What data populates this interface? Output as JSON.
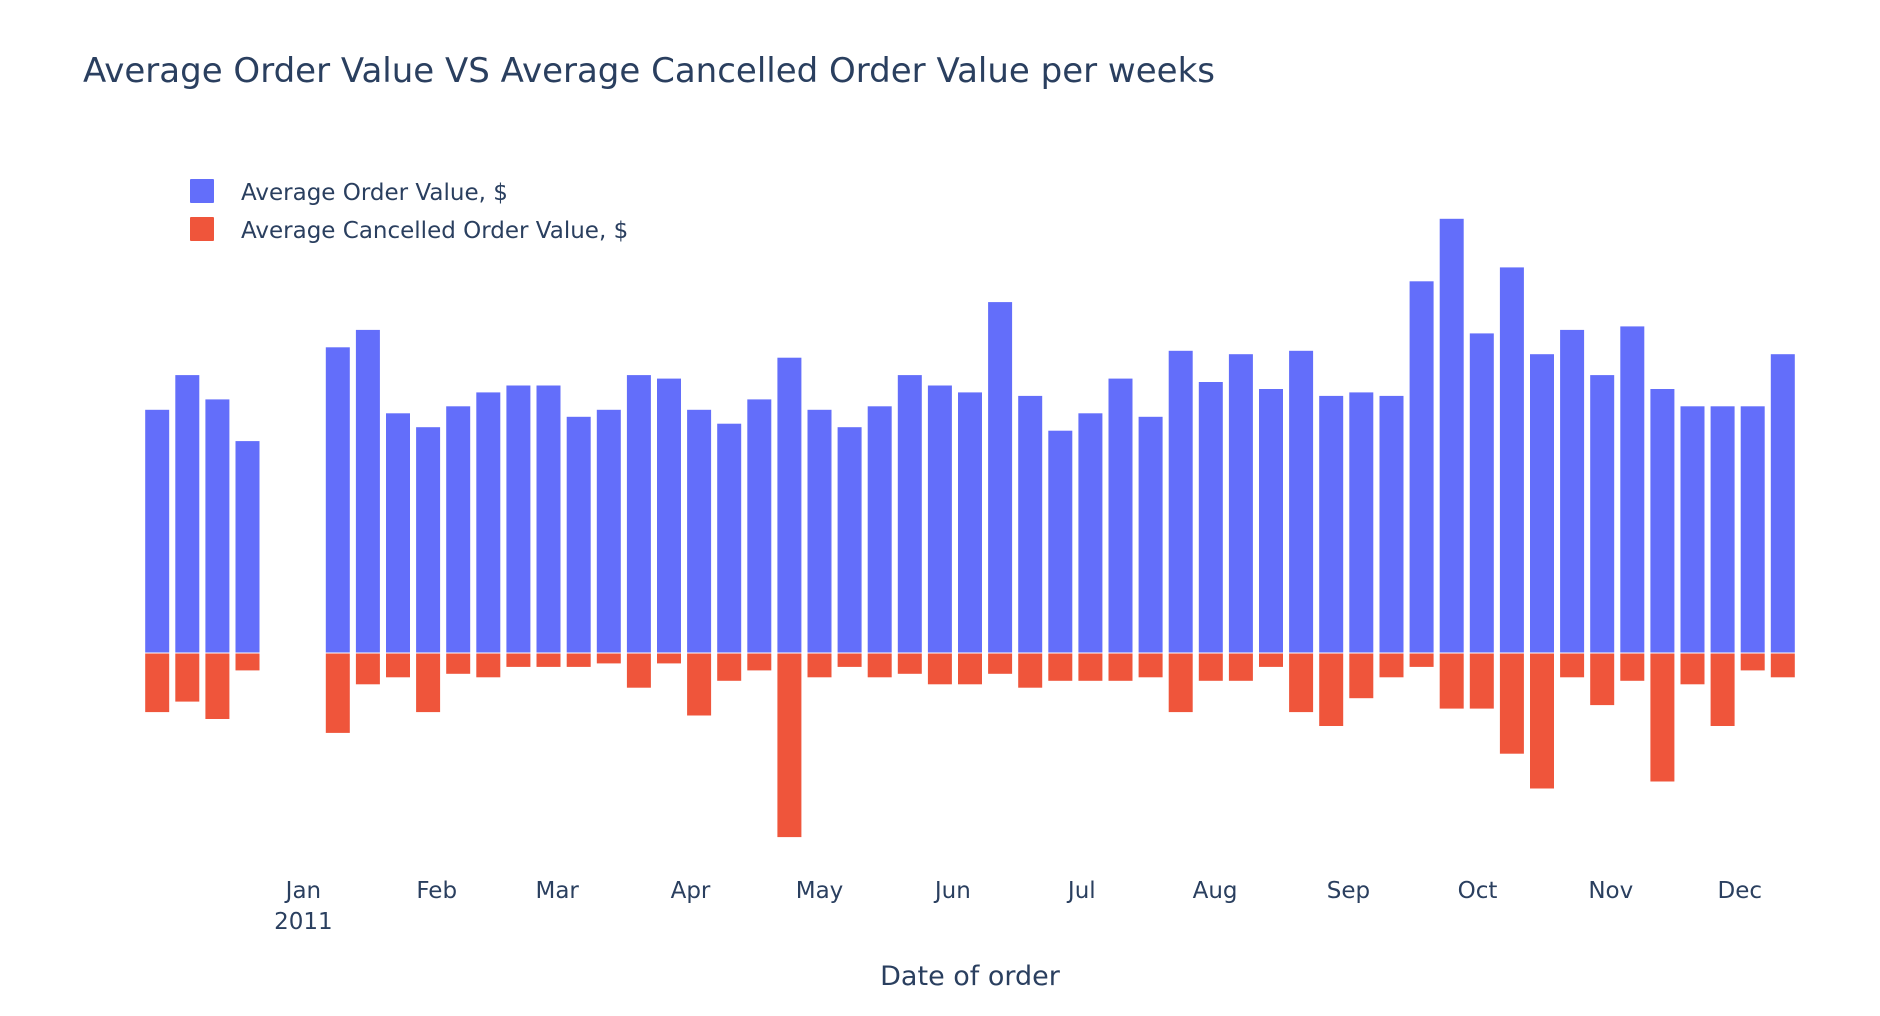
{
  "chart_data": {
    "type": "bar",
    "title": "Average Order Value VS Average Cancelled Order Value per weeks",
    "xlabel": "Date of order",
    "ylabel": "",
    "legend": {
      "placement": "top-left",
      "orientation": "vertical"
    },
    "grid": false,
    "y_tick_labels_shown": false,
    "colors": {
      "order_value": "#636efa",
      "cancelled_value": "#ef553b",
      "text": "#2a3f5f",
      "background": "#ffffff"
    },
    "x_ticks": [
      {
        "label": "Jan",
        "sublabel": "2011",
        "date": "2011-01-01"
      },
      {
        "label": "Feb",
        "sublabel": "",
        "date": "2011-02-01"
      },
      {
        "label": "Mar",
        "sublabel": "",
        "date": "2011-03-01"
      },
      {
        "label": "Apr",
        "sublabel": "",
        "date": "2011-04-01"
      },
      {
        "label": "May",
        "sublabel": "",
        "date": "2011-05-01"
      },
      {
        "label": "Jun",
        "sublabel": "",
        "date": "2011-06-01"
      },
      {
        "label": "Jul",
        "sublabel": "",
        "date": "2011-07-01"
      },
      {
        "label": "Aug",
        "sublabel": "",
        "date": "2011-08-01"
      },
      {
        "label": "Sep",
        "sublabel": "",
        "date": "2011-09-01"
      },
      {
        "label": "Oct",
        "sublabel": "",
        "date": "2011-10-01"
      },
      {
        "label": "Nov",
        "sublabel": "",
        "date": "2011-11-01"
      },
      {
        "label": "Dec",
        "sublabel": "",
        "date": "2011-12-01"
      }
    ],
    "x_range": [
      "2010-11-24",
      "2011-12-15"
    ],
    "ylim": [
      -60,
      124
    ],
    "series": [
      {
        "name": "Average Order Value, $",
        "x": [
          "2010-11-28",
          "2010-12-05",
          "2010-12-12",
          "2010-12-19",
          "2011-01-09",
          "2011-01-16",
          "2011-01-23",
          "2011-01-30",
          "2011-02-06",
          "2011-02-13",
          "2011-02-20",
          "2011-02-27",
          "2011-03-06",
          "2011-03-13",
          "2011-03-20",
          "2011-03-27",
          "2011-04-03",
          "2011-04-10",
          "2011-04-17",
          "2011-04-24",
          "2011-05-01",
          "2011-05-08",
          "2011-05-15",
          "2011-05-22",
          "2011-05-29",
          "2011-06-05",
          "2011-06-12",
          "2011-06-19",
          "2011-06-26",
          "2011-07-03",
          "2011-07-10",
          "2011-07-17",
          "2011-07-24",
          "2011-07-31",
          "2011-08-07",
          "2011-08-14",
          "2011-08-21",
          "2011-08-28",
          "2011-09-04",
          "2011-09-11",
          "2011-09-18",
          "2011-09-25",
          "2011-10-02",
          "2011-10-09",
          "2011-10-16",
          "2011-10-23",
          "2011-10-30",
          "2011-11-06",
          "2011-11-13",
          "2011-11-20",
          "2011-11-27",
          "2011-12-04",
          "2011-12-11"
        ],
        "values": [
          70,
          80,
          73,
          61,
          88,
          93,
          69,
          65,
          71,
          75,
          77,
          77,
          68,
          70,
          80,
          79,
          70,
          66,
          73,
          85,
          70,
          65,
          71,
          80,
          77,
          75,
          101,
          74,
          64,
          69,
          79,
          68,
          87,
          78,
          86,
          76,
          87,
          74,
          75,
          74,
          107,
          125,
          92,
          111,
          86,
          93,
          80,
          94,
          76,
          71,
          71,
          71,
          86
        ]
      },
      {
        "name": "Average Cancelled Order Value, $",
        "x": [
          "2010-11-28",
          "2010-12-05",
          "2010-12-12",
          "2010-12-19",
          "2011-01-09",
          "2011-01-16",
          "2011-01-23",
          "2011-01-30",
          "2011-02-06",
          "2011-02-13",
          "2011-02-20",
          "2011-02-27",
          "2011-03-06",
          "2011-03-13",
          "2011-03-20",
          "2011-03-27",
          "2011-04-03",
          "2011-04-10",
          "2011-04-17",
          "2011-04-24",
          "2011-05-01",
          "2011-05-08",
          "2011-05-15",
          "2011-05-22",
          "2011-05-29",
          "2011-06-05",
          "2011-06-12",
          "2011-06-19",
          "2011-06-26",
          "2011-07-03",
          "2011-07-10",
          "2011-07-17",
          "2011-07-24",
          "2011-07-31",
          "2011-08-07",
          "2011-08-14",
          "2011-08-21",
          "2011-08-28",
          "2011-09-04",
          "2011-09-11",
          "2011-09-18",
          "2011-09-25",
          "2011-10-02",
          "2011-10-09",
          "2011-10-16",
          "2011-10-23",
          "2011-10-30",
          "2011-11-06",
          "2011-11-13",
          "2011-11-20",
          "2011-11-27",
          "2011-12-04",
          "2011-12-11"
        ],
        "values": [
          -17,
          -14,
          -19,
          -5,
          -23,
          -9,
          -7,
          -17,
          -6,
          -7,
          -4,
          -4,
          -4,
          -3,
          -10,
          -3,
          -18,
          -8,
          -5,
          -53,
          -7,
          -4,
          -7,
          -6,
          -9,
          -9,
          -6,
          -10,
          -8,
          -8,
          -8,
          -7,
          -17,
          -8,
          -8,
          -4,
          -17,
          -21,
          -13,
          -7,
          -4,
          -16,
          -16,
          -29,
          -39,
          -7,
          -15,
          -8,
          -37,
          -9,
          -21,
          -5,
          -7
        ]
      }
    ]
  }
}
